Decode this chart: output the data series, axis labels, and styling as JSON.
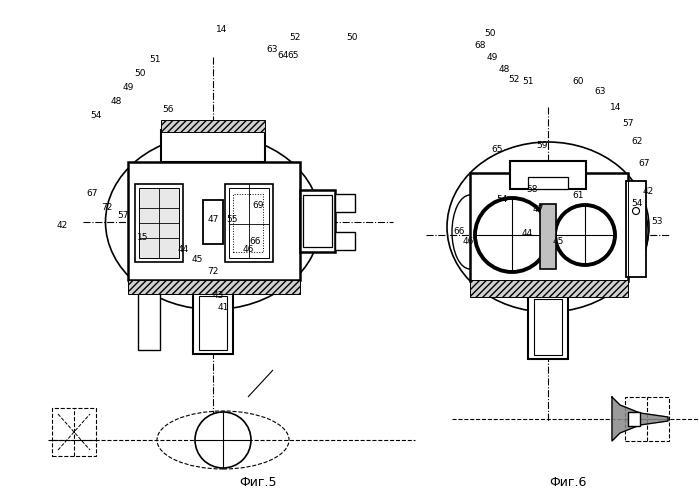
{
  "fig5_label": "Фиг.5",
  "fig6_label": "Фиг.6",
  "bg_color": "#ffffff",
  "lc": "#000000",
  "gray": "#aaaaaa",
  "lgray": "#dddddd"
}
